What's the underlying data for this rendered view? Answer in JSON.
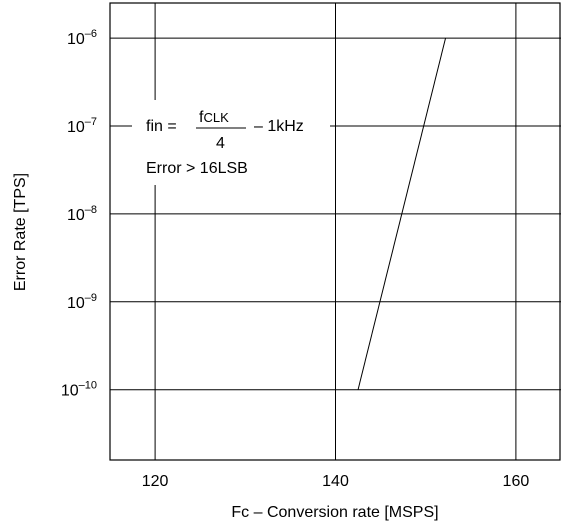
{
  "chart_data": {
    "type": "line",
    "xlabel": "Fc – Conversion rate [MSPS]",
    "ylabel": "Error Rate [TPS]",
    "xlim": [
      115,
      165
    ],
    "ylim_exponent": [
      -10.8,
      -5.6
    ],
    "y_scale": "log",
    "grid": true,
    "x_ticks": [
      {
        "value": 120,
        "label": "120"
      },
      {
        "value": 140,
        "label": "140"
      },
      {
        "value": 160,
        "label": "160"
      }
    ],
    "y_ticks": [
      {
        "exp": -6,
        "base": "10",
        "sup": "–6"
      },
      {
        "exp": -7,
        "base": "10",
        "sup": "–7"
      },
      {
        "exp": -8,
        "base": "10",
        "sup": "–8"
      },
      {
        "exp": -9,
        "base": "10",
        "sup": "–9"
      },
      {
        "exp": -10,
        "base": "10",
        "sup": "–10"
      }
    ],
    "series": [
      {
        "points": [
          {
            "x": 142.5,
            "y_exp": -10
          },
          {
            "x": 152.2,
            "y_exp": -6
          }
        ]
      }
    ],
    "annotation": {
      "fin": "fin =",
      "numerator": "fCLK",
      "numerator_base": "f",
      "numerator_sub": "CLK",
      "denominator": "4",
      "suffix": "– 1kHz",
      "condition": "Error > 16LSB"
    }
  }
}
